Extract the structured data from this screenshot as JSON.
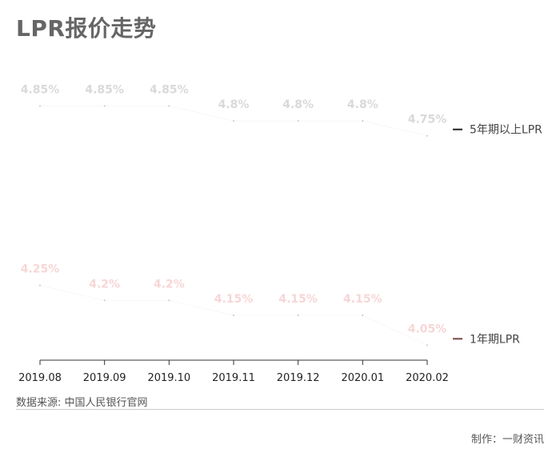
{
  "title": "LPR报价走势",
  "source": "数据来源: 中国人民银行官网",
  "credit": "制作：一财资讯",
  "chart_data": {
    "type": "line",
    "x": [
      "2019.08",
      "2019.09",
      "2019.10",
      "2019.11",
      "2019.12",
      "2020.01",
      "2020.02"
    ],
    "series": [
      {
        "name": "5年期以上LPR",
        "values": [
          4.85,
          4.85,
          4.85,
          4.8,
          4.8,
          4.8,
          4.75
        ],
        "labels": [
          "4.85%",
          "4.85%",
          "4.85%",
          "4.8%",
          "4.8%",
          "4.8%",
          "4.75%"
        ],
        "color": "#d9d9d9",
        "legend_color": "#222222"
      },
      {
        "name": "1年期LPR",
        "values": [
          4.25,
          4.2,
          4.2,
          4.15,
          4.15,
          4.15,
          4.05
        ],
        "labels": [
          "4.25%",
          "4.2%",
          "4.2%",
          "4.15%",
          "4.15%",
          "4.15%",
          "4.05%"
        ],
        "color": "#f7d6d6",
        "legend_color": "#7a4545"
      }
    ],
    "xlabel": "",
    "ylabel": "",
    "ylim": [
      4.0,
      4.95
    ],
    "grid": false,
    "legend": "right"
  }
}
